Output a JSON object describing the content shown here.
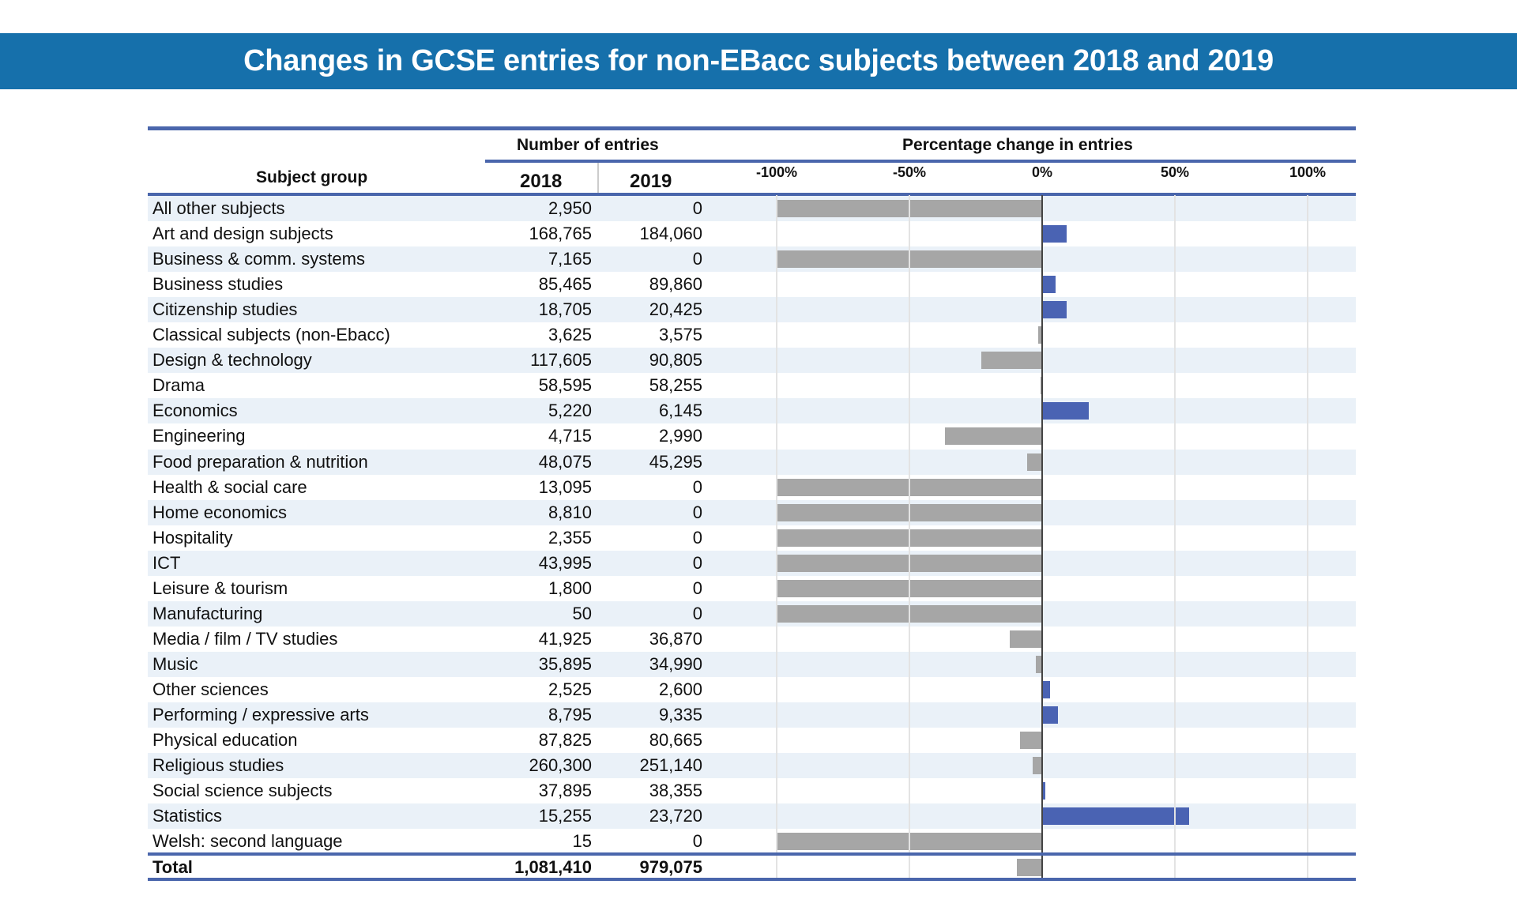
{
  "title": "Changes in GCSE entries for non-EBacc subjects between 2018 and 2019",
  "chart_data": {
    "type": "bar",
    "orientation": "horizontal",
    "title": "Changes in GCSE entries for non-EBacc subjects between 2018 and 2019",
    "headers": {
      "subject": "Subject group",
      "entries": "Number of entries",
      "year1": "2018",
      "year2": "2019",
      "change": "Percentage change in entries"
    },
    "xlim": [
      -100,
      100
    ],
    "xticks": [
      "-100%",
      "-50%",
      "0%",
      "50%",
      "100%"
    ],
    "colors": {
      "decrease": "#a6a6a6",
      "increase": "#4a63b3",
      "rule": "#4a66ac",
      "banner": "#1670ab"
    },
    "rows": [
      {
        "subject": "All other subjects",
        "e2018": "2,950",
        "e2019": "0",
        "pct": -100
      },
      {
        "subject": "Art and design subjects",
        "e2018": "168,765",
        "e2019": "184,060",
        "pct": 9.1
      },
      {
        "subject": "Business & comm. systems",
        "e2018": "7,165",
        "e2019": "0",
        "pct": -100
      },
      {
        "subject": "Business studies",
        "e2018": "85,465",
        "e2019": "89,860",
        "pct": 5.1
      },
      {
        "subject": "Citizenship studies",
        "e2018": "18,705",
        "e2019": "20,425",
        "pct": 9.2
      },
      {
        "subject": "Classical subjects (non-Ebacc)",
        "e2018": "3,625",
        "e2019": "3,575",
        "pct": -1.4
      },
      {
        "subject": "Design & technology",
        "e2018": "117,605",
        "e2019": "90,805",
        "pct": -22.8
      },
      {
        "subject": "Drama",
        "e2018": "58,595",
        "e2019": "58,255",
        "pct": -0.6
      },
      {
        "subject": "Economics",
        "e2018": "5,220",
        "e2019": "6,145",
        "pct": 17.7
      },
      {
        "subject": "Engineering",
        "e2018": "4,715",
        "e2019": "2,990",
        "pct": -36.6
      },
      {
        "subject": "Food preparation & nutrition",
        "e2018": "48,075",
        "e2019": "45,295",
        "pct": -5.8
      },
      {
        "subject": "Health & social care",
        "e2018": "13,095",
        "e2019": "0",
        "pct": -100
      },
      {
        "subject": "Home economics",
        "e2018": "8,810",
        "e2019": "0",
        "pct": -100
      },
      {
        "subject": "Hospitality",
        "e2018": "2,355",
        "e2019": "0",
        "pct": -100
      },
      {
        "subject": "ICT",
        "e2018": "43,995",
        "e2019": "0",
        "pct": -100
      },
      {
        "subject": "Leisure & tourism",
        "e2018": "1,800",
        "e2019": "0",
        "pct": -100
      },
      {
        "subject": "Manufacturing",
        "e2018": "50",
        "e2019": "0",
        "pct": -100
      },
      {
        "subject": "Media / film / TV studies",
        "e2018": "41,925",
        "e2019": "36,870",
        "pct": -12.1
      },
      {
        "subject": "Music",
        "e2018": "35,895",
        "e2019": "34,990",
        "pct": -2.5
      },
      {
        "subject": "Other sciences",
        "e2018": "2,525",
        "e2019": "2,600",
        "pct": 3.0
      },
      {
        "subject": "Performing / expressive arts",
        "e2018": "8,795",
        "e2019": "9,335",
        "pct": 6.1
      },
      {
        "subject": "Physical education",
        "e2018": "87,825",
        "e2019": "80,665",
        "pct": -8.2
      },
      {
        "subject": "Religious studies",
        "e2018": "260,300",
        "e2019": "251,140",
        "pct": -3.5
      },
      {
        "subject": "Social science subjects",
        "e2018": "37,895",
        "e2019": "38,355",
        "pct": 1.2
      },
      {
        "subject": "Statistics",
        "e2018": "15,255",
        "e2019": "23,720",
        "pct": 55.5
      },
      {
        "subject": "Welsh: second language",
        "e2018": "15",
        "e2019": "0",
        "pct": -100
      }
    ],
    "total": {
      "subject": "Total",
      "e2018": "1,081,410",
      "e2019": "979,075",
      "pct": -9.5
    }
  }
}
